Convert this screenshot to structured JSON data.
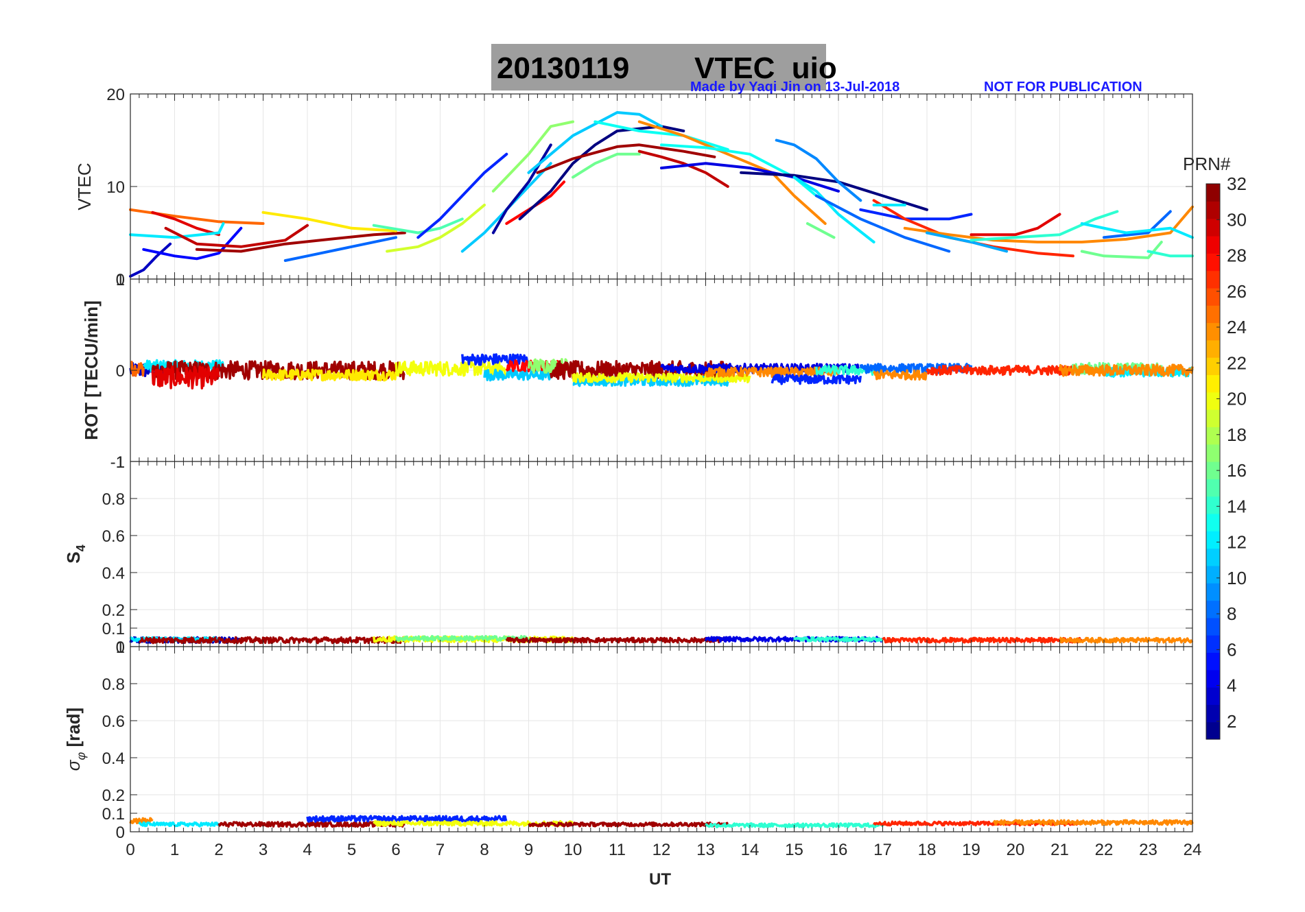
{
  "figure": {
    "title_date": "20130119",
    "title_name": "VTEC  uio",
    "credit_left": "Made by Yaqi Jin on 13-Jul-2018",
    "credit_right": "NOT FOR PUBLICATION",
    "xlabel": "UT",
    "colors": {
      "title_box": "#9e9e9e",
      "credit": "#1a1aff"
    }
  },
  "chart_data": [
    {
      "id": "vtec",
      "type": "line",
      "ylabel": "VTEC",
      "ylim": [
        0,
        20
      ],
      "yticks": [
        0,
        10,
        20
      ],
      "ytick_labels": [
        "0",
        "10",
        "20"
      ],
      "xlim": [
        0,
        24
      ],
      "grid": true,
      "series": [
        {
          "prn": 3,
          "x": [
            0.0,
            0.3,
            0.6,
            0.9
          ],
          "y": [
            0.3,
            1.0,
            2.5,
            3.8
          ]
        },
        {
          "prn": 25,
          "x": [
            0.0,
            1.0,
            2.0,
            3.0
          ],
          "y": [
            7.5,
            6.8,
            6.2,
            6.0
          ]
        },
        {
          "prn": 29,
          "x": [
            0.5,
            1.0,
            1.5,
            2.0
          ],
          "y": [
            7.2,
            6.5,
            5.5,
            4.8
          ]
        },
        {
          "prn": 5,
          "x": [
            0.3,
            1.0,
            1.5,
            2.0,
            2.5
          ],
          "y": [
            3.2,
            2.5,
            2.2,
            2.8,
            5.5
          ]
        },
        {
          "prn": 12,
          "x": [
            0.0,
            1.0,
            2.0,
            2.1
          ],
          "y": [
            4.8,
            4.5,
            5.0,
            6.0
          ]
        },
        {
          "prn": 30,
          "x": [
            0.8,
            1.5,
            2.5,
            3.5,
            4.0
          ],
          "y": [
            5.5,
            3.8,
            3.5,
            4.2,
            5.8
          ]
        },
        {
          "prn": 31,
          "x": [
            1.5,
            2.5,
            3.5,
            4.5,
            5.5,
            6.2
          ],
          "y": [
            3.2,
            3.0,
            3.8,
            4.3,
            4.8,
            5.0
          ]
        },
        {
          "prn": 21,
          "x": [
            3.0,
            4.0,
            5.0,
            6.0
          ],
          "y": [
            7.2,
            6.5,
            5.5,
            5.2
          ]
        },
        {
          "prn": 8,
          "x": [
            3.5,
            4.0,
            5.0,
            6.0
          ],
          "y": [
            2.0,
            2.5,
            3.5,
            4.5
          ]
        },
        {
          "prn": 15,
          "x": [
            5.5,
            6.5,
            7.0,
            7.5
          ],
          "y": [
            5.8,
            5.0,
            5.5,
            6.5
          ]
        },
        {
          "prn": 19,
          "x": [
            5.8,
            6.5,
            7.0,
            7.5,
            8.0
          ],
          "y": [
            3.0,
            3.5,
            4.5,
            6.0,
            8.0
          ]
        },
        {
          "prn": 6,
          "x": [
            6.5,
            7.0,
            7.5,
            8.0,
            8.5
          ],
          "y": [
            4.5,
            6.5,
            9.0,
            11.5,
            13.5
          ]
        },
        {
          "prn": 11,
          "x": [
            7.5,
            8.0,
            8.5,
            9.0,
            9.5
          ],
          "y": [
            3.0,
            5.0,
            7.5,
            10.0,
            12.5
          ]
        },
        {
          "prn": 2,
          "x": [
            8.2,
            8.5,
            9.0,
            9.5
          ],
          "y": [
            5.0,
            7.5,
            10.5,
            14.5
          ]
        },
        {
          "prn": 17,
          "x": [
            8.2,
            9.0,
            9.5,
            10.0
          ],
          "y": [
            9.5,
            13.5,
            16.5,
            17.0
          ]
        },
        {
          "prn": 28,
          "x": [
            8.5,
            9.0,
            9.5,
            9.8
          ],
          "y": [
            6.0,
            7.5,
            9.0,
            10.5
          ]
        },
        {
          "prn": 1,
          "x": [
            8.8,
            9.5,
            10.0,
            10.5,
            11.0,
            12.0,
            12.5
          ],
          "y": [
            6.5,
            9.5,
            12.5,
            14.5,
            16.0,
            16.5,
            16.0
          ]
        },
        {
          "prn": 11,
          "x": [
            9.0,
            10.0,
            11.0,
            11.5,
            12.0
          ],
          "y": [
            11.5,
            15.5,
            18.0,
            17.8,
            16.5
          ]
        },
        {
          "prn": 13,
          "x": [
            10.5,
            11.5,
            12.5,
            13.5
          ],
          "y": [
            17.0,
            16.0,
            15.5,
            14.0
          ]
        },
        {
          "prn": 16,
          "x": [
            10.0,
            10.5,
            11.0,
            11.5
          ],
          "y": [
            11.0,
            12.5,
            13.5,
            13.5
          ]
        },
        {
          "prn": 31,
          "x": [
            9.2,
            10.0,
            11.0,
            11.5,
            12.5,
            13.2
          ],
          "y": [
            11.5,
            13.0,
            14.3,
            14.5,
            13.8,
            13.2
          ]
        },
        {
          "prn": 30,
          "x": [
            11.5,
            12.0,
            12.5,
            13.0,
            13.5
          ],
          "y": [
            13.8,
            13.2,
            12.5,
            11.5,
            10.0
          ]
        },
        {
          "prn": 24,
          "x": [
            11.5,
            12.5,
            13.5,
            14.5,
            15.0,
            15.7
          ],
          "y": [
            17.0,
            15.5,
            13.5,
            11.5,
            9.0,
            6.0
          ]
        },
        {
          "prn": 13,
          "x": [
            12.0,
            13.0,
            14.0,
            15.0,
            15.5
          ],
          "y": [
            14.5,
            14.2,
            13.5,
            11.0,
            9.0
          ]
        },
        {
          "prn": 4,
          "x": [
            12.0,
            13.0,
            14.0,
            15.0,
            16.0
          ],
          "y": [
            12.0,
            12.5,
            12.0,
            11.0,
            9.5
          ]
        },
        {
          "prn": 1,
          "x": [
            13.8,
            15.0,
            16.0,
            17.0,
            18.0
          ],
          "y": [
            11.5,
            11.2,
            10.5,
            9.0,
            7.5
          ]
        },
        {
          "prn": 9,
          "x": [
            14.6,
            15.0,
            15.5,
            16.0,
            16.5
          ],
          "y": [
            15.0,
            14.5,
            13.0,
            10.5,
            8.5
          ]
        },
        {
          "prn": 12,
          "x": [
            15.0,
            15.5,
            16.0,
            16.8
          ],
          "y": [
            11.0,
            9.5,
            7.0,
            4.0
          ]
        },
        {
          "prn": 8,
          "x": [
            15.5,
            16.5,
            17.5,
            18.5
          ],
          "y": [
            9.0,
            6.5,
            4.5,
            3.0
          ]
        },
        {
          "prn": 16,
          "x": [
            15.3,
            15.9
          ],
          "y": [
            6.0,
            4.5
          ]
        },
        {
          "prn": 6,
          "x": [
            16.5,
            17.5,
            18.5,
            19.0
          ],
          "y": [
            7.5,
            6.5,
            6.5,
            7.0
          ]
        },
        {
          "prn": 27,
          "x": [
            16.8,
            17.5,
            18.5,
            19.5,
            20.5,
            21.3
          ],
          "y": [
            8.5,
            6.5,
            4.5,
            3.5,
            2.8,
            2.5
          ]
        },
        {
          "prn": 12,
          "x": [
            16.8,
            17.5
          ],
          "y": [
            8.0,
            8.0
          ]
        },
        {
          "prn": 24,
          "x": [
            17.5,
            18.5,
            19.5,
            20.5,
            21.5,
            22.5,
            23.5,
            24.0
          ],
          "y": [
            5.5,
            4.8,
            4.2,
            4.0,
            4.0,
            4.3,
            5.0,
            7.8
          ]
        },
        {
          "prn": 10,
          "x": [
            18.0,
            19.0,
            19.8
          ],
          "y": [
            5.0,
            4.0,
            3.0
          ]
        },
        {
          "prn": 29,
          "x": [
            19.0,
            20.0,
            20.5,
            21.0
          ],
          "y": [
            4.8,
            4.8,
            5.5,
            7.0
          ]
        },
        {
          "prn": 14,
          "x": [
            19.0,
            20.0,
            21.0,
            21.8,
            22.3
          ],
          "y": [
            4.2,
            4.5,
            4.8,
            6.5,
            7.3
          ]
        },
        {
          "prn": 16,
          "x": [
            21.5,
            22.0,
            23.0,
            23.3
          ],
          "y": [
            3.0,
            2.5,
            2.3,
            4.0
          ]
        },
        {
          "prn": 8,
          "x": [
            22.0,
            23.0,
            23.5
          ],
          "y": [
            4.5,
            5.0,
            7.3
          ]
        },
        {
          "prn": 12,
          "x": [
            21.5,
            22.5,
            23.5,
            24.0
          ],
          "y": [
            6.0,
            5.0,
            5.5,
            4.5
          ]
        },
        {
          "prn": 14,
          "x": [
            23.0,
            23.5,
            24.0
          ],
          "y": [
            3.0,
            2.5,
            2.5
          ]
        }
      ]
    },
    {
      "id": "rot",
      "type": "line",
      "ylabel": "ROT [TECU/min]",
      "ylim": [
        -1,
        1
      ],
      "yticks": [
        -1,
        0,
        1
      ],
      "ytick_labels": [
        "-1",
        "0",
        "1"
      ],
      "xlim": [
        0,
        24
      ],
      "grid": true,
      "noise_segments": [
        {
          "prn": 3,
          "x0": 0.0,
          "x1": 0.9,
          "center": 0.0,
          "amp": 0.08
        },
        {
          "prn": 25,
          "x0": 0.0,
          "x1": 0.3,
          "center": 0.02,
          "amp": 0.08
        },
        {
          "prn": 12,
          "x0": 0.3,
          "x1": 2.1,
          "center": 0.05,
          "amp": 0.06
        },
        {
          "prn": 31,
          "x0": 0.5,
          "x1": 6.2,
          "center": 0.0,
          "amp": 0.1
        },
        {
          "prn": 29,
          "x0": 0.5,
          "x1": 2.0,
          "center": -0.08,
          "amp": 0.12
        },
        {
          "prn": 21,
          "x0": 3.0,
          "x1": 6.0,
          "center": -0.05,
          "amp": 0.06
        },
        {
          "prn": 20,
          "x0": 6.0,
          "x1": 8.5,
          "center": 0.02,
          "amp": 0.08
        },
        {
          "prn": 6,
          "x0": 7.5,
          "x1": 9.0,
          "center": 0.12,
          "amp": 0.06
        },
        {
          "prn": 11,
          "x0": 8.0,
          "x1": 9.5,
          "center": -0.05,
          "amp": 0.06
        },
        {
          "prn": 28,
          "x0": 8.5,
          "x1": 9.8,
          "center": 0.05,
          "amp": 0.06
        },
        {
          "prn": 17,
          "x0": 9.0,
          "x1": 10.0,
          "center": 0.05,
          "amp": 0.08
        },
        {
          "prn": 31,
          "x0": 9.5,
          "x1": 13.5,
          "center": 0.0,
          "amp": 0.1
        },
        {
          "prn": 11,
          "x0": 10.0,
          "x1": 13.5,
          "center": -0.12,
          "amp": 0.05
        },
        {
          "prn": 20,
          "x0": 10.0,
          "x1": 14.0,
          "center": -0.08,
          "amp": 0.05
        },
        {
          "prn": 4,
          "x0": 12.0,
          "x1": 16.5,
          "center": 0.02,
          "amp": 0.05
        },
        {
          "prn": 24,
          "x0": 13.0,
          "x1": 16.0,
          "center": -0.02,
          "amp": 0.05
        },
        {
          "prn": 6,
          "x0": 14.5,
          "x1": 16.5,
          "center": -0.1,
          "amp": 0.05
        },
        {
          "prn": 14,
          "x0": 15.5,
          "x1": 17.0,
          "center": 0.0,
          "amp": 0.05
        },
        {
          "prn": 8,
          "x0": 16.5,
          "x1": 19.0,
          "center": 0.02,
          "amp": 0.05
        },
        {
          "prn": 24,
          "x0": 16.8,
          "x1": 18.0,
          "center": -0.05,
          "amp": 0.05
        },
        {
          "prn": 27,
          "x0": 18.0,
          "x1": 21.3,
          "center": 0.0,
          "amp": 0.05
        },
        {
          "prn": 16,
          "x0": 21.3,
          "x1": 23.3,
          "center": 0.02,
          "amp": 0.06
        },
        {
          "prn": 12,
          "x0": 22.0,
          "x1": 24.0,
          "center": -0.02,
          "amp": 0.05
        },
        {
          "prn": 24,
          "x0": 21.0,
          "x1": 24.0,
          "center": 0.0,
          "amp": 0.06
        }
      ]
    },
    {
      "id": "s4",
      "type": "line",
      "ylabel": "S4",
      "ylim": [
        0,
        1
      ],
      "yticks": [
        0,
        0.1,
        0.2,
        0.4,
        0.6,
        0.8,
        1
      ],
      "ytick_labels": [
        "0",
        "0.1",
        "0.2",
        "0.4",
        "0.6",
        "0.8",
        "1"
      ],
      "xlim": [
        0,
        24
      ],
      "grid": true,
      "noise_segments": [
        {
          "prn": 3,
          "x0": 0.0,
          "x1": 2.5,
          "center": 0.035,
          "amp": 0.015
        },
        {
          "prn": 12,
          "x0": 0.0,
          "x1": 2.0,
          "center": 0.04,
          "amp": 0.01
        },
        {
          "prn": 31,
          "x0": 0.2,
          "x1": 6.2,
          "center": 0.035,
          "amp": 0.015
        },
        {
          "prn": 20,
          "x0": 5.5,
          "x1": 10.0,
          "center": 0.04,
          "amp": 0.015
        },
        {
          "prn": 16,
          "x0": 6.0,
          "x1": 9.0,
          "center": 0.045,
          "amp": 0.012
        },
        {
          "prn": 31,
          "x0": 8.5,
          "x1": 13.5,
          "center": 0.035,
          "amp": 0.012
        },
        {
          "prn": 4,
          "x0": 13.0,
          "x1": 17.0,
          "center": 0.04,
          "amp": 0.012
        },
        {
          "prn": 14,
          "x0": 15.0,
          "x1": 17.0,
          "center": 0.04,
          "amp": 0.01
        },
        {
          "prn": 27,
          "x0": 17.0,
          "x1": 21.5,
          "center": 0.035,
          "amp": 0.012
        },
        {
          "prn": 24,
          "x0": 21.0,
          "x1": 24.0,
          "center": 0.035,
          "amp": 0.012
        }
      ]
    },
    {
      "id": "sigma_phi",
      "type": "line",
      "ylabel": "σφ [rad]",
      "ylim": [
        0,
        1
      ],
      "yticks": [
        0,
        0.1,
        0.2,
        0.4,
        0.6,
        0.8,
        1
      ],
      "ytick_labels": [
        "0",
        "0.1",
        "0.2",
        "0.4",
        "0.6",
        "0.8",
        "1"
      ],
      "xlim": [
        0,
        24
      ],
      "grid": true,
      "noise_segments": [
        {
          "prn": 24,
          "x0": 0.0,
          "x1": 0.5,
          "center": 0.06,
          "amp": 0.015
        },
        {
          "prn": 12,
          "x0": 0.2,
          "x1": 2.0,
          "center": 0.04,
          "amp": 0.01
        },
        {
          "prn": 31,
          "x0": 2.0,
          "x1": 6.2,
          "center": 0.04,
          "amp": 0.012
        },
        {
          "prn": 6,
          "x0": 4.0,
          "x1": 8.5,
          "center": 0.07,
          "amp": 0.015
        },
        {
          "prn": 20,
          "x0": 5.5,
          "x1": 10.0,
          "center": 0.045,
          "amp": 0.012
        },
        {
          "prn": 31,
          "x0": 9.0,
          "x1": 13.5,
          "center": 0.04,
          "amp": 0.01
        },
        {
          "prn": 14,
          "x0": 13.0,
          "x1": 17.0,
          "center": 0.035,
          "amp": 0.01
        },
        {
          "prn": 27,
          "x0": 16.8,
          "x1": 21.5,
          "center": 0.045,
          "amp": 0.01
        },
        {
          "prn": 24,
          "x0": 19.5,
          "x1": 24.0,
          "center": 0.05,
          "amp": 0.012
        }
      ]
    }
  ],
  "x_axis": {
    "ticks": [
      0,
      1,
      2,
      3,
      4,
      5,
      6,
      7,
      8,
      9,
      10,
      11,
      12,
      13,
      14,
      15,
      16,
      17,
      18,
      19,
      20,
      21,
      22,
      23,
      24
    ],
    "tick_labels": [
      "0",
      "1",
      "2",
      "3",
      "4",
      "5",
      "6",
      "7",
      "8",
      "9",
      "10",
      "11",
      "12",
      "13",
      "14",
      "15",
      "16",
      "17",
      "18",
      "19",
      "20",
      "21",
      "22",
      "23",
      "24"
    ]
  },
  "colorbar": {
    "label": "PRN#",
    "range": [
      1,
      32
    ],
    "ticks": [
      2,
      4,
      6,
      8,
      10,
      12,
      14,
      16,
      18,
      20,
      22,
      24,
      26,
      28,
      30,
      32
    ],
    "tick_labels": [
      "2",
      "4",
      "6",
      "8",
      "10",
      "12",
      "14",
      "16",
      "18",
      "20",
      "22",
      "24",
      "26",
      "28",
      "30",
      "32"
    ],
    "colormap": "jet"
  }
}
